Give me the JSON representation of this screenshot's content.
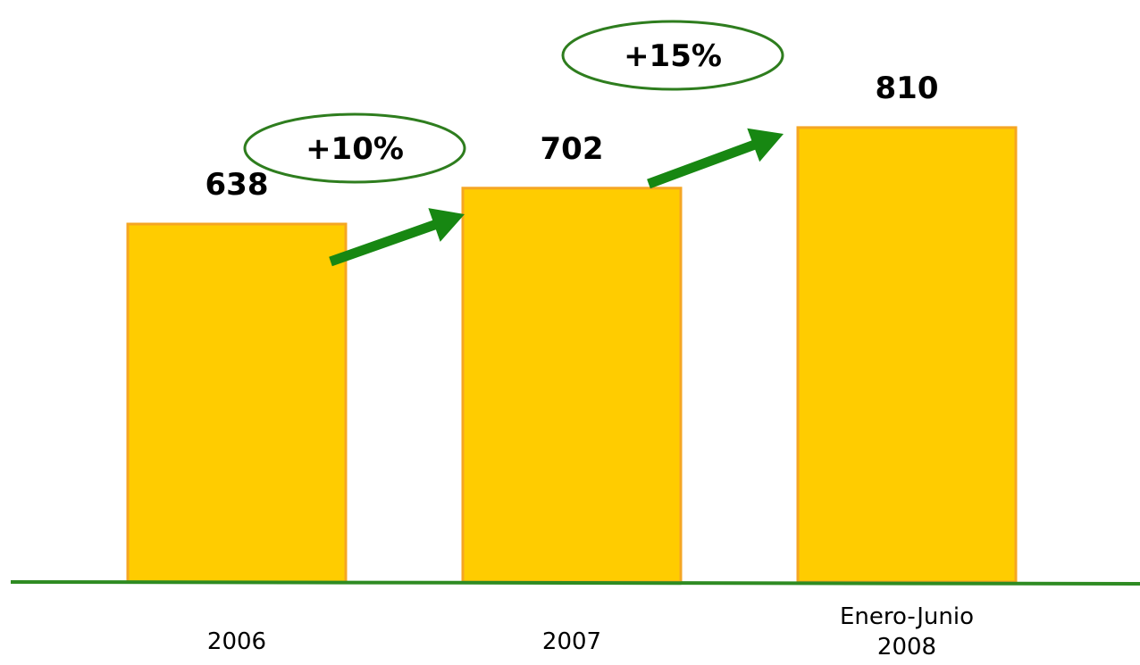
{
  "chart_data": {
    "type": "bar",
    "categories": [
      [
        "2006"
      ],
      [
        "2007"
      ],
      [
        "Enero-Junio",
        "2008"
      ]
    ],
    "values": [
      638,
      702,
      810
    ],
    "value_labels": [
      "638",
      "702",
      "810"
    ],
    "growth_annotations": [
      {
        "from_index": 0,
        "to_index": 1,
        "label": "+10%"
      },
      {
        "from_index": 1,
        "to_index": 2,
        "label": "+15%"
      }
    ],
    "title": "",
    "xlabel": "",
    "ylabel": "",
    "ylim": [
      0,
      1000
    ],
    "grid": false,
    "colors": {
      "bar_fill": "#FFCC00",
      "bar_stroke": "#F5A623",
      "axis_line": "#2E8B22",
      "arrow": "#178712",
      "ellipse_stroke": "#2E7D1E"
    }
  }
}
